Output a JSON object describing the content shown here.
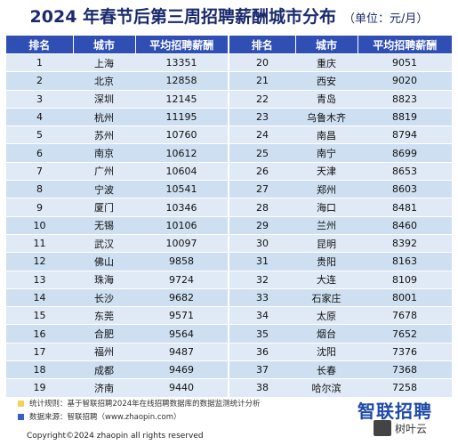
{
  "title": "2024 年春节后第三周招聘薪酬城市分布",
  "unit": "（单位：元/月）",
  "headers": [
    "排名",
    "城市",
    "平均招聘薪酬",
    "排名",
    "城市",
    "平均招聘薪酬"
  ],
  "rows": [
    [
      "1",
      "上海",
      "13351",
      "20",
      "重庆",
      "9051"
    ],
    [
      "2",
      "北京",
      "12858",
      "21",
      "西安",
      "9020"
    ],
    [
      "3",
      "深圳",
      "12145",
      "22",
      "青岛",
      "8823"
    ],
    [
      "4",
      "杭州",
      "11195",
      "23",
      "乌鲁木齐",
      "8819"
    ],
    [
      "5",
      "苏州",
      "10760",
      "24",
      "南昌",
      "8794"
    ],
    [
      "6",
      "南京",
      "10612",
      "25",
      "南宁",
      "8699"
    ],
    [
      "7",
      "广州",
      "10604",
      "26",
      "天津",
      "8653"
    ],
    [
      "8",
      "宁波",
      "10541",
      "27",
      "郑州",
      "8603"
    ],
    [
      "9",
      "厦门",
      "10346",
      "28",
      "海口",
      "8481"
    ],
    [
      "10",
      "无锡",
      "10106",
      "29",
      "兰州",
      "8460"
    ],
    [
      "11",
      "武汉",
      "10097",
      "30",
      "昆明",
      "8392"
    ],
    [
      "12",
      "佛山",
      "9858",
      "31",
      "贵阳",
      "8163"
    ],
    [
      "13",
      "珠海",
      "9724",
      "32",
      "大连",
      "8109"
    ],
    [
      "14",
      "长沙",
      "9682",
      "33",
      "石家庄",
      "8001"
    ],
    [
      "15",
      "东莞",
      "9571",
      "34",
      "太原",
      "7678"
    ],
    [
      "16",
      "合肥",
      "9564",
      "35",
      "烟台",
      "7652"
    ],
    [
      "17",
      "福州",
      "9487",
      "36",
      "沈阳",
      "7376"
    ],
    [
      "18",
      "成都",
      "9469",
      "37",
      "长春",
      "7368"
    ],
    [
      "19",
      "济南",
      "9440",
      "38",
      "哈尔滨",
      "7258"
    ]
  ],
  "footer": {
    "rule": "统计规则：基于智联招聘2024年在线招聘数据库的数据监测统计分析",
    "source": "数据来源：智联招聘（www.zhaopin.com）",
    "copyright": "Copyright©2024 zhaopin all rights reserved",
    "logo": "智联招聘",
    "watermark": "树叶云"
  },
  "colors": {
    "header": "#2f4fb5",
    "rule_square": "#f2d25a",
    "source_square": "#3a5fcd"
  }
}
